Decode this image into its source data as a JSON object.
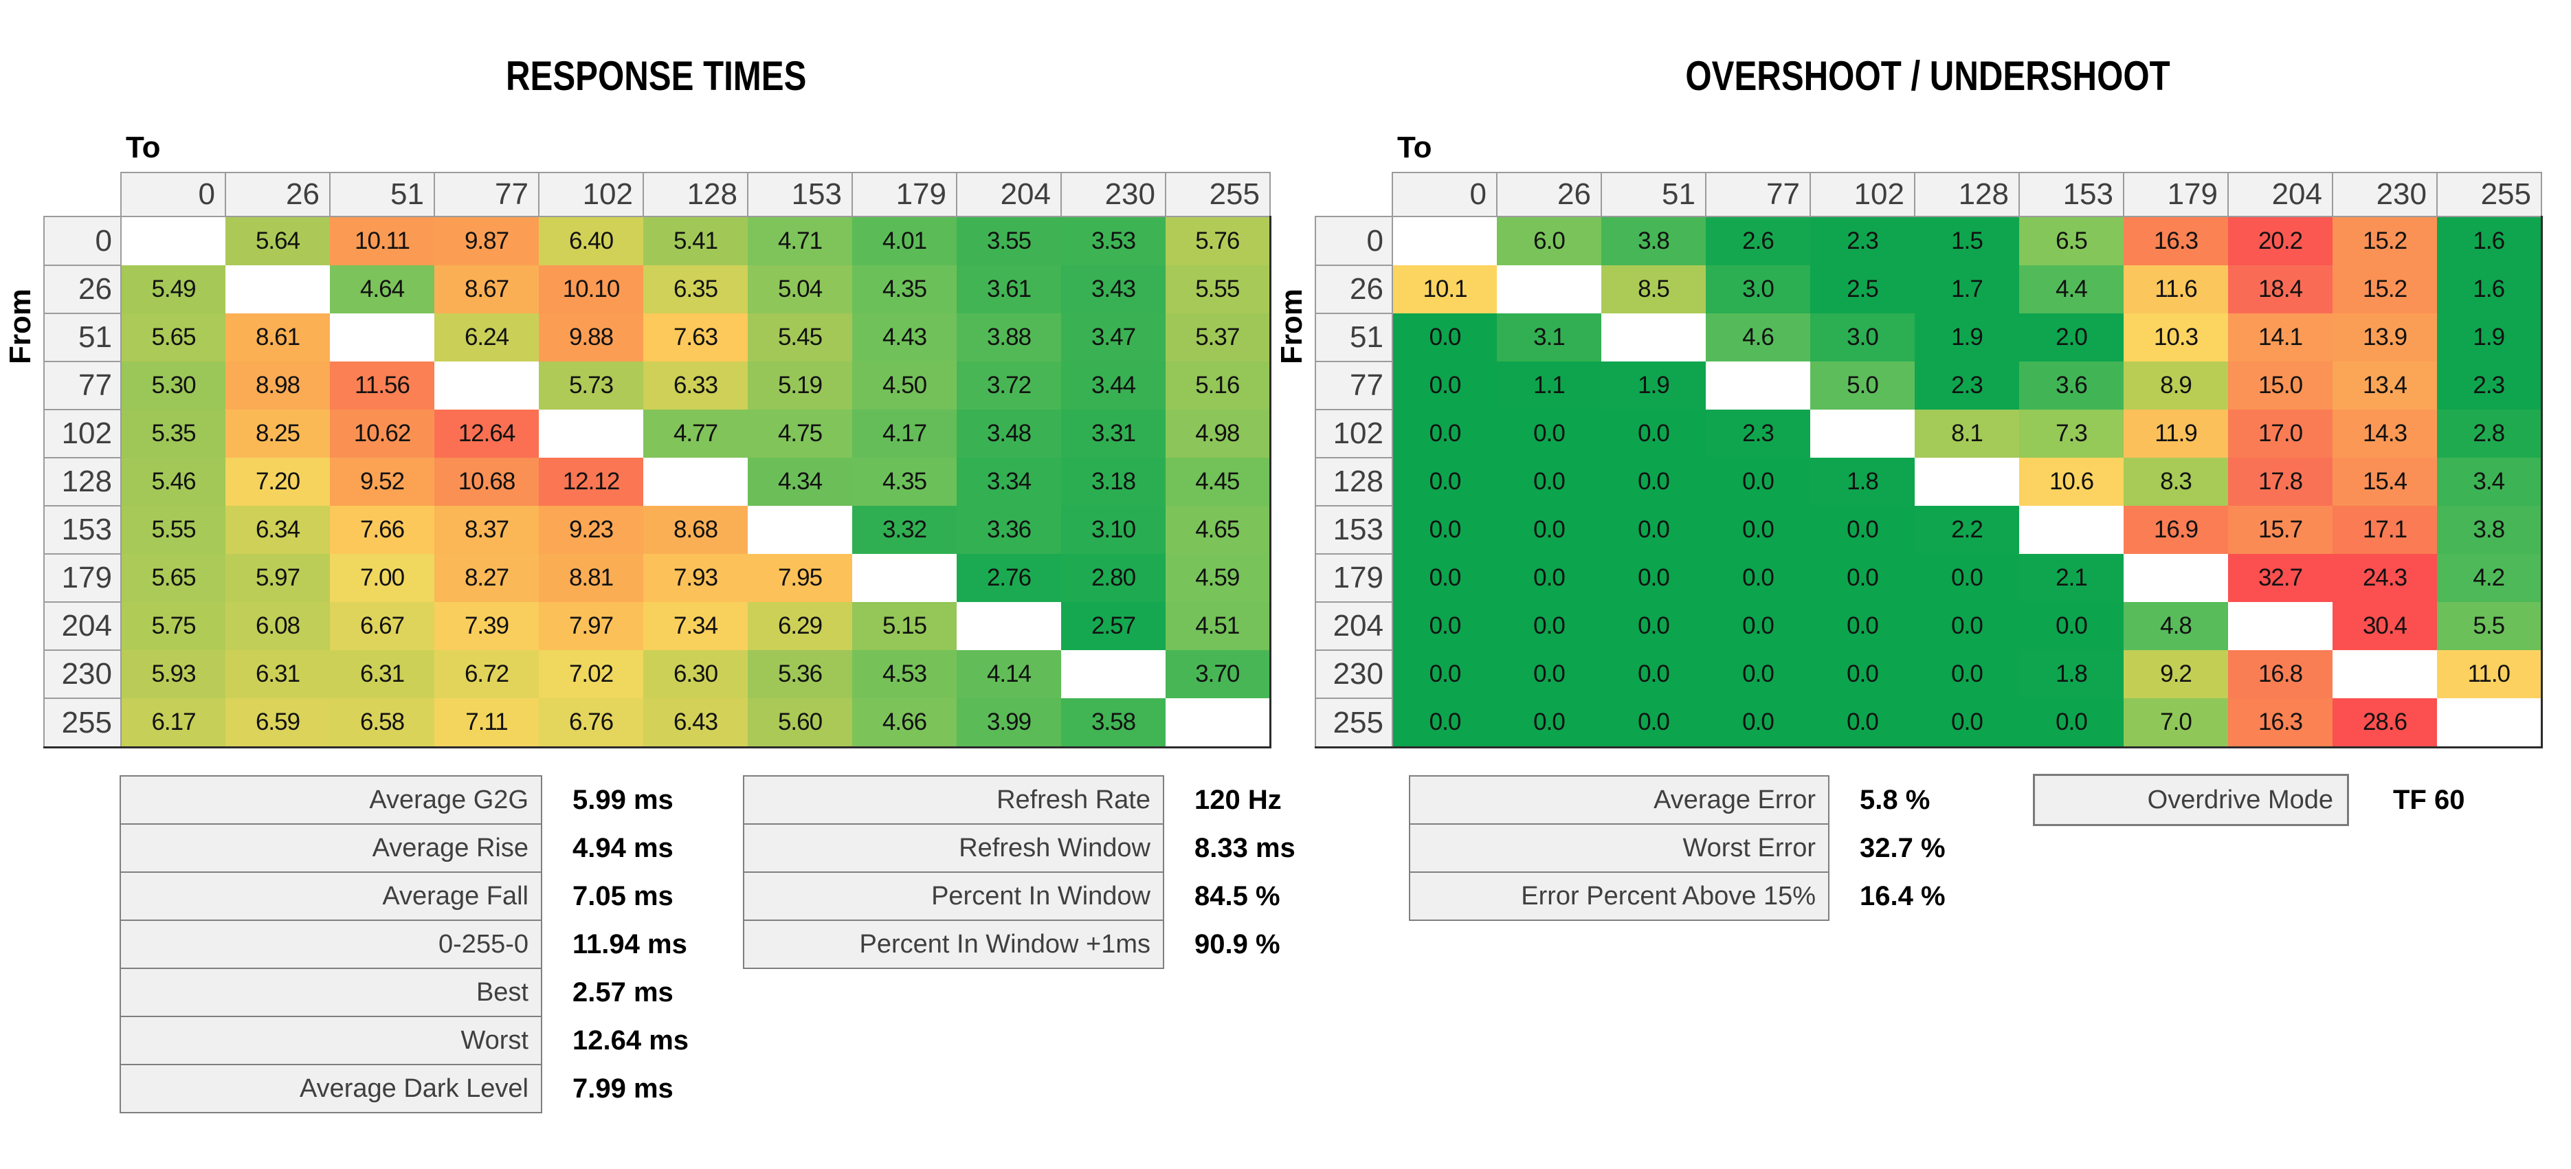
{
  "axis": {
    "to": "To",
    "from": "From",
    "levels": [
      "0",
      "26",
      "51",
      "77",
      "102",
      "128",
      "153",
      "179",
      "204",
      "230",
      "255"
    ]
  },
  "chart_data": [
    {
      "type": "heatmap",
      "title": "RESPONSE TIMES",
      "unit": "ms",
      "decimals": 2,
      "x_categories": [
        "0",
        "26",
        "51",
        "77",
        "102",
        "128",
        "153",
        "179",
        "204",
        "230",
        "255"
      ],
      "y_categories": [
        "0",
        "26",
        "51",
        "77",
        "102",
        "128",
        "153",
        "179",
        "204",
        "230",
        "255"
      ],
      "matrix": [
        [
          null,
          5.64,
          10.11,
          9.87,
          6.4,
          5.41,
          4.71,
          4.01,
          3.55,
          3.53,
          5.76
        ],
        [
          5.49,
          null,
          4.64,
          8.67,
          10.1,
          6.35,
          5.04,
          4.35,
          3.61,
          3.43,
          5.55
        ],
        [
          5.65,
          8.61,
          null,
          6.24,
          9.88,
          7.63,
          5.45,
          4.43,
          3.88,
          3.47,
          5.37
        ],
        [
          5.3,
          8.98,
          11.56,
          null,
          5.73,
          6.33,
          5.19,
          4.5,
          3.72,
          3.44,
          5.16
        ],
        [
          5.35,
          8.25,
          10.62,
          12.64,
          null,
          4.77,
          4.75,
          4.17,
          3.48,
          3.31,
          4.98
        ],
        [
          5.46,
          7.2,
          9.52,
          10.68,
          12.12,
          null,
          4.34,
          4.35,
          3.34,
          3.18,
          4.45
        ],
        [
          5.55,
          6.34,
          7.66,
          8.37,
          9.23,
          8.68,
          null,
          3.32,
          3.36,
          3.1,
          4.65
        ],
        [
          5.65,
          5.97,
          7.0,
          8.27,
          8.81,
          7.93,
          7.95,
          null,
          2.76,
          2.8,
          4.59
        ],
        [
          5.75,
          6.08,
          6.67,
          7.39,
          7.97,
          7.34,
          6.29,
          5.15,
          null,
          2.57,
          4.51
        ],
        [
          5.93,
          6.31,
          6.31,
          6.72,
          7.02,
          6.3,
          5.36,
          4.53,
          4.14,
          null,
          3.7
        ],
        [
          6.17,
          6.59,
          6.58,
          7.11,
          6.76,
          6.43,
          5.6,
          4.66,
          3.99,
          3.58,
          null
        ]
      ],
      "colormap": [
        {
          "v": 2.5,
          "c": "#12A750"
        },
        {
          "v": 3.3,
          "c": "#2FAF52"
        },
        {
          "v": 4.0,
          "c": "#5BBB57"
        },
        {
          "v": 4.7,
          "c": "#7EC45A"
        },
        {
          "v": 5.5,
          "c": "#A5C857"
        },
        {
          "v": 6.3,
          "c": "#CCD057"
        },
        {
          "v": 7.0,
          "c": "#F0D75E"
        },
        {
          "v": 7.5,
          "c": "#FCCC5B"
        },
        {
          "v": 8.6,
          "c": "#FBB054"
        },
        {
          "v": 10.0,
          "c": "#FB9C53"
        },
        {
          "v": 11.0,
          "c": "#FA8B53"
        },
        {
          "v": 12.0,
          "c": "#FB7853"
        },
        {
          "v": 12.7,
          "c": "#FB6F52"
        }
      ]
    },
    {
      "type": "heatmap",
      "title": "OVERSHOOT / UNDERSHOOT",
      "unit": "%",
      "decimals": 1,
      "x_categories": [
        "0",
        "26",
        "51",
        "77",
        "102",
        "128",
        "153",
        "179",
        "204",
        "230",
        "255"
      ],
      "y_categories": [
        "0",
        "26",
        "51",
        "77",
        "102",
        "128",
        "153",
        "179",
        "204",
        "230",
        "255"
      ],
      "matrix": [
        [
          null,
          6.0,
          3.8,
          2.6,
          2.3,
          1.5,
          6.5,
          16.3,
          20.2,
          15.2,
          1.6
        ],
        [
          10.1,
          null,
          8.5,
          3.0,
          2.5,
          1.7,
          4.4,
          11.6,
          18.4,
          15.2,
          1.6
        ],
        [
          0.0,
          3.1,
          null,
          4.6,
          3.0,
          1.9,
          2.0,
          10.3,
          14.1,
          13.9,
          1.9
        ],
        [
          0.0,
          1.1,
          1.9,
          null,
          5.0,
          2.3,
          3.6,
          8.9,
          15.0,
          13.4,
          2.3
        ],
        [
          0.0,
          0.0,
          0.0,
          2.3,
          null,
          8.1,
          7.3,
          11.9,
          17.0,
          14.3,
          2.8
        ],
        [
          0.0,
          0.0,
          0.0,
          0.0,
          1.8,
          null,
          10.6,
          8.3,
          17.8,
          15.4,
          3.4
        ],
        [
          0.0,
          0.0,
          0.0,
          0.0,
          0.0,
          2.2,
          null,
          16.9,
          15.7,
          17.1,
          3.8
        ],
        [
          0.0,
          0.0,
          0.0,
          0.0,
          0.0,
          0.0,
          2.1,
          null,
          32.7,
          24.3,
          4.2
        ],
        [
          0.0,
          0.0,
          0.0,
          0.0,
          0.0,
          0.0,
          0.0,
          4.8,
          null,
          30.4,
          5.5
        ],
        [
          0.0,
          0.0,
          0.0,
          0.0,
          0.0,
          0.0,
          1.8,
          9.2,
          16.8,
          null,
          11.0
        ],
        [
          0.0,
          0.0,
          0.0,
          0.0,
          0.0,
          0.0,
          0.0,
          7.0,
          16.3,
          28.6,
          null
        ]
      ],
      "colormap": [
        {
          "v": 0,
          "c": "#0CA44D"
        },
        {
          "v": 2.5,
          "c": "#0FA54E"
        },
        {
          "v": 3.2,
          "c": "#37B153"
        },
        {
          "v": 4.0,
          "c": "#4BB857"
        },
        {
          "v": 4.8,
          "c": "#58BC5B"
        },
        {
          "v": 6.0,
          "c": "#79C35A"
        },
        {
          "v": 7.0,
          "c": "#8FC858"
        },
        {
          "v": 8.5,
          "c": "#ABCB56"
        },
        {
          "v": 9.2,
          "c": "#C3CE55"
        },
        {
          "v": 10.1,
          "c": "#FCD560"
        },
        {
          "v": 11.0,
          "c": "#FCD160"
        },
        {
          "v": 12.0,
          "c": "#FBBE59"
        },
        {
          "v": 13.4,
          "c": "#FBA556"
        },
        {
          "v": 14.3,
          "c": "#FB9855"
        },
        {
          "v": 15.4,
          "c": "#FA9055"
        },
        {
          "v": 16.3,
          "c": "#FA8253"
        },
        {
          "v": 17.1,
          "c": "#FA7B54"
        },
        {
          "v": 18.4,
          "c": "#FA6B55"
        },
        {
          "v": 20.2,
          "c": "#FB5852"
        },
        {
          "v": 22.0,
          "c": "#FC4F4F"
        },
        {
          "v": 33.0,
          "c": "#FC4F4F"
        }
      ]
    }
  ],
  "stats": {
    "response_summary": {
      "rows": [
        {
          "label": "Average G2G",
          "value": "5.99 ms"
        },
        {
          "label": "Average Rise",
          "value": "4.94 ms"
        },
        {
          "label": "Average Fall",
          "value": "7.05 ms"
        },
        {
          "label": "0-255-0",
          "value": "11.94 ms"
        },
        {
          "label": "Best",
          "value": "2.57 ms"
        },
        {
          "label": "Worst",
          "value": "12.64 ms"
        },
        {
          "label": "Average Dark Level",
          "value": "7.99 ms"
        }
      ]
    },
    "refresh_summary": {
      "rows": [
        {
          "label": "Refresh Rate",
          "value": "120 Hz"
        },
        {
          "label": "Refresh Window",
          "value": "8.33 ms"
        },
        {
          "label": "Percent In Window",
          "value": "84.5 %"
        },
        {
          "label": "Percent In Window +1ms",
          "value": "90.9 %"
        }
      ]
    },
    "error_summary": {
      "rows": [
        {
          "label": "Average Error",
          "value": "5.8 %"
        },
        {
          "label": "Worst Error",
          "value": "32.7 %"
        },
        {
          "label": "Error Percent Above 15%",
          "value": "16.4 %"
        }
      ]
    },
    "overdrive": {
      "label": "Overdrive Mode",
      "value": "TF 60"
    }
  },
  "colors": {
    "header_bg": "#F2F2F2",
    "header_border": "#9B9B9B",
    "header_text": "#3F3F3F",
    "stat_label_bg": "#F0F0F0",
    "stat_label_border": "#7F7F7F",
    "diagonal_cell": "#FFFFFF",
    "scale_green": "#0CA44D",
    "scale_yellow": "#FCD560",
    "scale_red": "#FC4F4F"
  }
}
